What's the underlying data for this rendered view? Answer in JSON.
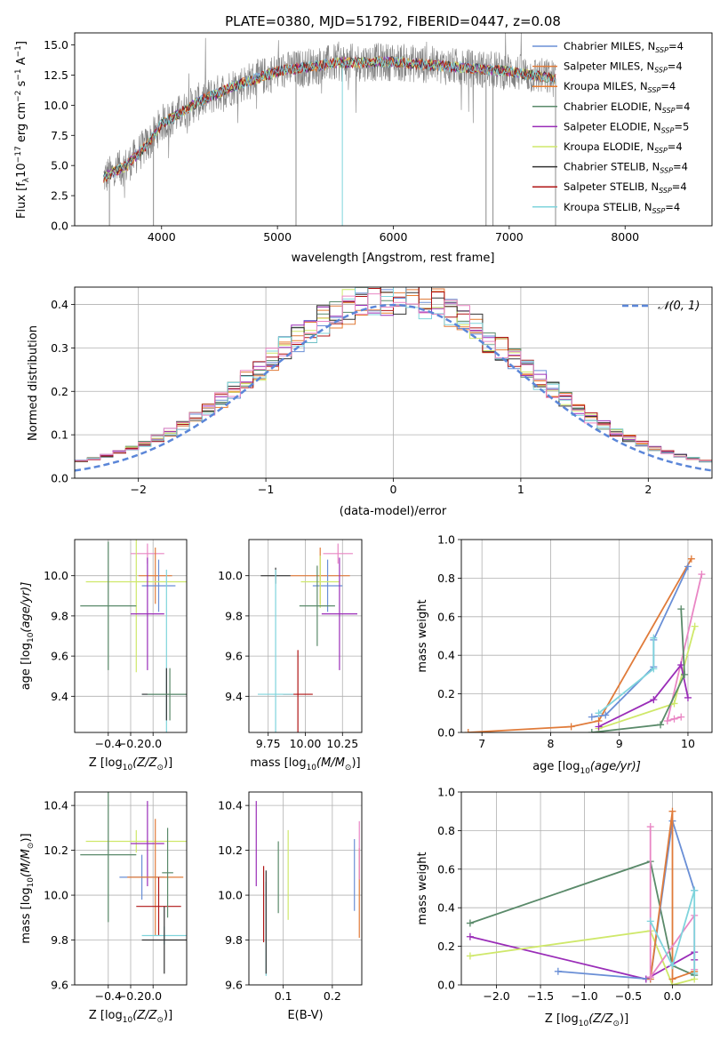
{
  "colors": {
    "chabrier_miles": "#6a8fd6",
    "salpeter_miles": "#e07b3a",
    "kroupa_miles": "#e97b2c",
    "chabrier_elodie": "#5a8a6a",
    "salpeter_elodie": "#9a2db8",
    "kroupa_elodie": "#cfe86a",
    "chabrier_stelib": "#333333",
    "salpeter_stelib": "#b01515",
    "kroupa_stelib": "#7fd4dc",
    "pink": "#e986c4",
    "gauss": "#5b86d8",
    "data_gray": "#808080"
  },
  "chart_data": [
    {
      "id": "spectrum",
      "type": "line",
      "title": "PLATE=0380, MJD=51792, FIBERID=0447, z=0.08",
      "xlabel": "wavelength [Angstrom, rest frame]",
      "ylabel_parts": [
        "Flux [f",
        "λ",
        "10",
        "−17",
        " erg cm",
        "−2",
        " s",
        "−1",
        " A",
        "−1",
        "]"
      ],
      "xlim": [
        3250,
        8750
      ],
      "ylim": [
        0,
        16
      ],
      "xticks": [
        4000,
        5000,
        6000,
        7000,
        8000
      ],
      "yticks": [
        "0.0",
        "2.5",
        "5.0",
        "7.5",
        "10.0",
        "12.5",
        "15.0"
      ],
      "ytick_values": [
        0,
        2.5,
        5,
        7.5,
        10,
        12.5,
        15
      ],
      "continuum": [
        [
          3500,
          4.0
        ],
        [
          3700,
          5.0
        ],
        [
          3900,
          7.0
        ],
        [
          4000,
          8.5
        ],
        [
          4100,
          9.0
        ],
        [
          4300,
          10.2
        ],
        [
          4600,
          11.5
        ],
        [
          5000,
          12.8
        ],
        [
          5500,
          13.5
        ],
        [
          6000,
          13.6
        ],
        [
          6500,
          13.2
        ],
        [
          7000,
          12.8
        ],
        [
          7400,
          12.2
        ]
      ],
      "legend": [
        {
          "label": "Chabrier MILES, N",
          "sub": "SSP",
          "tail": "=4",
          "color": "#6a8fd6"
        },
        {
          "label": "Salpeter MILES, N",
          "sub": "SSP",
          "tail": "=4",
          "color": "#e07b3a"
        },
        {
          "label": "Kroupa MILES, N",
          "sub": "SSP",
          "tail": "=4",
          "color": "#e97b2c"
        },
        {
          "label": "Chabrier ELODIE, N",
          "sub": "SSP",
          "tail": "=4",
          "color": "#5a8a6a"
        },
        {
          "label": "Salpeter ELODIE, N",
          "sub": "SSP",
          "tail": "=5",
          "color": "#9a2db8"
        },
        {
          "label": "Kroupa ELODIE, N",
          "sub": "SSP",
          "tail": "=4",
          "color": "#cfe86a"
        },
        {
          "label": "Chabrier STELIB, N",
          "sub": "SSP",
          "tail": "=4",
          "color": "#333333"
        },
        {
          "label": "Salpeter STELIB, N",
          "sub": "SSP",
          "tail": "=4",
          "color": "#b01515"
        },
        {
          "label": "Kroupa STELIB, N",
          "sub": "SSP",
          "tail": "=4",
          "color": "#7fd4dc"
        }
      ]
    },
    {
      "id": "residuals",
      "type": "area",
      "xlabel": "(data-model)/error",
      "ylabel": "Normed distribution",
      "xlim": [
        -2.5,
        2.5
      ],
      "ylim": [
        0,
        0.44
      ],
      "xticks": [
        "−2",
        "−1",
        "0",
        "1",
        "2"
      ],
      "xtick_values": [
        -2,
        -1,
        0,
        1,
        2
      ],
      "yticks": [
        "0.0",
        "0.1",
        "0.2",
        "0.3",
        "0.4"
      ],
      "ytick_values": [
        0,
        0.1,
        0.2,
        0.3,
        0.4
      ],
      "bin_width": 0.1,
      "legend": {
        "label": "𝒩(0, 1)"
      }
    },
    {
      "id": "age_vs_Z",
      "type": "scatter",
      "xlabel": "Z [log",
      "xlabel_sub": "10",
      "xlabel_tail": "(Z/Z",
      "xlabel_sun": "⊙",
      "xlabel_end": ")]",
      "ylabel": "age  [log",
      "ylabel_sub": "10",
      "ylabel_tail": "(age/yr)]",
      "xlim": [
        -0.7,
        0.3
      ],
      "ylim": [
        9.22,
        10.18
      ],
      "xticks": [
        "−0.4",
        "−0.2",
        "0.0"
      ],
      "xtick_values": [
        -0.4,
        -0.2,
        0.0
      ],
      "yticks": [
        "9.4",
        "9.6",
        "9.8",
        "10.0"
      ],
      "ytick_values": [
        9.4,
        9.6,
        9.8,
        10.0
      ],
      "points": [
        {
          "x": -0.05,
          "y": 10.11,
          "xerr": 0.15,
          "yerr": 0.05,
          "color": "#e986c4"
        },
        {
          "x": 0.02,
          "y": 10.0,
          "xerr": 0.15,
          "yerr": 0.14,
          "color": "#e07b3a"
        },
        {
          "x": 0.05,
          "y": 9.95,
          "xerr": 0.15,
          "yerr": 0.13,
          "color": "#6a8fd6"
        },
        {
          "x": -0.15,
          "y": 9.97,
          "xerr": 0.45,
          "yerr": 0.45,
          "color": "#cfe86a"
        },
        {
          "x": -0.4,
          "y": 9.85,
          "xerr": 0.25,
          "yerr": 0.32,
          "color": "#5a8a6a"
        },
        {
          "x": -0.05,
          "y": 9.81,
          "xerr": 0.15,
          "yerr": 0.28,
          "color": "#9a2db8"
        },
        {
          "x": 0.12,
          "y": 9.41,
          "xerr": 0.22,
          "yerr": 0.62,
          "color": "#7fd4dc"
        },
        {
          "x": 0.12,
          "y": 9.41,
          "xerr": 0.22,
          "yerr": 0.13,
          "color": "#333333"
        },
        {
          "x": 0.15,
          "y": 9.41,
          "xerr": 0.2,
          "yerr": 0.13,
          "color": "#5a8a6a"
        }
      ]
    },
    {
      "id": "age_vs_mass",
      "type": "scatter",
      "xlabel": "mass [log",
      "xlabel_sub": "10",
      "xlabel_tail": "(M/M",
      "xlabel_sun": "⊙",
      "xlabel_end": ")]",
      "xlim": [
        9.62,
        10.38
      ],
      "ylim": [
        9.22,
        10.18
      ],
      "xticks": [
        "9.75",
        "10.00",
        "10.25"
      ],
      "xtick_values": [
        9.75,
        10.0,
        10.25
      ],
      "yticks": [
        "9.4",
        "9.6",
        "9.8",
        "10.0"
      ],
      "ytick_values": [
        9.4,
        9.6,
        9.8,
        10.0
      ],
      "points": [
        {
          "x": 10.22,
          "y": 10.11,
          "xerr": 0.1,
          "yerr": 0.05,
          "color": "#e986c4"
        },
        {
          "x": 10.1,
          "y": 10.0,
          "xerr": 0.2,
          "yerr": 0.14,
          "color": "#e07b3a"
        },
        {
          "x": 10.15,
          "y": 9.95,
          "xerr": 0.1,
          "yerr": 0.13,
          "color": "#6a8fd6"
        },
        {
          "x": 10.1,
          "y": 9.97,
          "xerr": 0.13,
          "yerr": 0.13,
          "color": "#cfe86a"
        },
        {
          "x": 9.8,
          "y": 10.0,
          "xerr": 0.1,
          "yerr": 0.04,
          "color": "#333333"
        },
        {
          "x": 10.23,
          "y": 9.81,
          "xerr": 0.12,
          "yerr": 0.28,
          "color": "#9a2db8"
        },
        {
          "x": 10.08,
          "y": 9.85,
          "xerr": 0.12,
          "yerr": 0.2,
          "color": "#5a8a6a"
        },
        {
          "x": 9.95,
          "y": 9.41,
          "xerr": 0.1,
          "yerr": 0.22,
          "color": "#b01515"
        },
        {
          "x": 9.8,
          "y": 9.41,
          "xerr": 0.12,
          "yerr": 0.62,
          "color": "#7fd4dc"
        }
      ]
    },
    {
      "id": "massweight_vs_age",
      "type": "line",
      "xlabel": "age  [log",
      "xlabel_sub": "10",
      "xlabel_tail": "(age/yr)]",
      "ylabel": "mass weight",
      "xlim": [
        6.7,
        10.35
      ],
      "ylim": [
        0,
        1
      ],
      "xticks": [
        "7",
        "8",
        "9",
        "10"
      ],
      "xtick_values": [
        7,
        8,
        9,
        10
      ],
      "yticks": [
        "0.0",
        "0.2",
        "0.4",
        "0.6",
        "0.8",
        "1.0"
      ],
      "ytick_values": [
        0,
        0.2,
        0.4,
        0.6,
        0.8,
        1.0
      ],
      "series": [
        {
          "color": "#e07b3a",
          "x": [
            6.8,
            8.3,
            8.7,
            10.05
          ],
          "y": [
            0.0,
            0.03,
            0.06,
            0.9
          ]
        },
        {
          "color": "#6a8fd6",
          "x": [
            8.6,
            8.8,
            9.5,
            9.5,
            10.0
          ],
          "y": [
            0.08,
            0.09,
            0.34,
            0.48,
            0.86
          ]
        },
        {
          "color": "#e986c4",
          "x": [
            9.9,
            9.8,
            9.7,
            10.2
          ],
          "y": [
            0.08,
            0.07,
            0.06,
            0.82
          ]
        },
        {
          "color": "#cfe86a",
          "x": [
            8.7,
            9.8,
            10.1
          ],
          "y": [
            0.02,
            0.15,
            0.55
          ]
        },
        {
          "color": "#9a2db8",
          "x": [
            8.7,
            9.5,
            9.9,
            10.0
          ],
          "y": [
            0.03,
            0.17,
            0.35,
            0.18
          ]
        },
        {
          "color": "#5a8a6a",
          "x": [
            8.6,
            9.6,
            9.95,
            9.9
          ],
          "y": [
            0.0,
            0.04,
            0.3,
            0.64
          ]
        },
        {
          "color": "#7fd4dc",
          "x": [
            8.7,
            9.5,
            9.5
          ],
          "y": [
            0.1,
            0.33,
            0.49
          ]
        }
      ]
    },
    {
      "id": "mass_vs_Z",
      "type": "scatter",
      "xlabel": "Z [log",
      "xlabel_sub": "10",
      "xlabel_tail": "(Z/Z",
      "xlabel_sun": "⊙",
      "xlabel_end": ")]",
      "ylabel": "mass [log",
      "ylabel_sub": "10",
      "ylabel_tail": "(M/M",
      "ylabel_sun": "⊙",
      "ylabel_end": ")]",
      "xlim": [
        -0.7,
        0.3
      ],
      "ylim": [
        9.6,
        10.46
      ],
      "xticks": [
        "−0.4",
        "−0.2",
        "0.0"
      ],
      "xtick_values": [
        -0.4,
        -0.2,
        0.0
      ],
      "yticks": [
        "9.6",
        "9.8",
        "10.0",
        "10.2",
        "10.4"
      ],
      "ytick_values": [
        9.6,
        9.8,
        10.0,
        10.2,
        10.4
      ],
      "points": [
        {
          "x": -0.15,
          "y": 10.24,
          "xerr": 0.45,
          "yerr": 0.05,
          "color": "#cfe86a"
        },
        {
          "x": -0.05,
          "y": 10.23,
          "xerr": 0.15,
          "yerr": 0.19,
          "color": "#9a2db8"
        },
        {
          "x": -0.4,
          "y": 10.18,
          "xerr": 0.25,
          "yerr": 0.3,
          "color": "#5a8a6a"
        },
        {
          "x": -0.1,
          "y": 10.08,
          "xerr": 0.2,
          "yerr": 0.1,
          "color": "#6a8fd6"
        },
        {
          "x": 0.02,
          "y": 10.08,
          "xerr": 0.25,
          "yerr": 0.26,
          "color": "#e07b3a"
        },
        {
          "x": 0.05,
          "y": 9.95,
          "xerr": 0.2,
          "yerr": 0.13,
          "color": "#b01515"
        },
        {
          "x": 0.1,
          "y": 9.82,
          "xerr": 0.2,
          "yerr": 0.04,
          "color": "#7fd4dc"
        },
        {
          "x": 0.1,
          "y": 9.8,
          "xerr": 0.2,
          "yerr": 0.15,
          "color": "#333333"
        },
        {
          "x": 0.13,
          "y": 10.1,
          "xerr": 0.05,
          "yerr": 0.2,
          "color": "#5a8a6a"
        }
      ]
    },
    {
      "id": "mass_vs_ebv",
      "type": "scatter",
      "xlabel": "E(B-V)",
      "xlim": [
        0.03,
        0.26
      ],
      "ylim": [
        9.6,
        10.46
      ],
      "xticks": [
        "0.1",
        "0.2"
      ],
      "xtick_values": [
        0.1,
        0.2
      ],
      "yticks": [
        "9.6",
        "9.8",
        "10.0",
        "10.2",
        "10.4"
      ],
      "ytick_values": [
        9.6,
        9.8,
        10.0,
        10.2,
        10.4
      ],
      "points": [
        {
          "x": 0.045,
          "y": 10.23,
          "xerr": 0,
          "yerr": 0.19,
          "color": "#9a2db8"
        },
        {
          "x": 0.06,
          "y": 9.96,
          "xerr": 0,
          "yerr": 0.17,
          "color": "#b01515"
        },
        {
          "x": 0.065,
          "y": 9.85,
          "xerr": 0,
          "yerr": 0.21,
          "color": "#7fd4dc"
        },
        {
          "x": 0.065,
          "y": 9.88,
          "xerr": 0,
          "yerr": 0.23,
          "color": "#333333"
        },
        {
          "x": 0.09,
          "y": 10.08,
          "xerr": 0,
          "yerr": 0.16,
          "color": "#5a8a6a"
        },
        {
          "x": 0.11,
          "y": 10.09,
          "xerr": 0,
          "yerr": 0.2,
          "color": "#cfe86a"
        },
        {
          "x": 0.245,
          "y": 10.09,
          "xerr": 0,
          "yerr": 0.16,
          "color": "#6a8fd6"
        },
        {
          "x": 0.255,
          "y": 10.01,
          "xerr": 0,
          "yerr": 0.2,
          "color": "#e07b3a"
        },
        {
          "x": 0.255,
          "y": 10.2,
          "xerr": 0,
          "yerr": 0.13,
          "color": "#e986c4"
        }
      ]
    },
    {
      "id": "massweight_vs_Z",
      "type": "line",
      "xlabel": "Z [log",
      "xlabel_sub": "10",
      "xlabel_tail": "(Z/Z",
      "xlabel_sun": "⊙",
      "xlabel_end": ")]",
      "ylabel": "mass weight",
      "xlim": [
        -2.4,
        0.45
      ],
      "ylim": [
        0,
        1
      ],
      "xticks": [
        "−2.0",
        "−1.5",
        "−1.0",
        "−0.5",
        "0.0"
      ],
      "xtick_values": [
        -2.0,
        -1.5,
        -1.0,
        -0.5,
        0.0
      ],
      "yticks": [
        "0.0",
        "0.2",
        "0.4",
        "0.6",
        "0.8",
        "1.0"
      ],
      "ytick_values": [
        0,
        0.2,
        0.4,
        0.6,
        0.8,
        1.0
      ],
      "series": [
        {
          "color": "#5a8a6a",
          "x": [
            -2.3,
            -0.25,
            0.0,
            0.25
          ],
          "y": [
            0.32,
            0.64,
            0.1,
            0.05
          ]
        },
        {
          "color": "#9a2db8",
          "x": [
            -2.3,
            -0.3,
            0.25,
            0.25
          ],
          "y": [
            0.25,
            0.03,
            0.17,
            0.13
          ]
        },
        {
          "color": "#cfe86a",
          "x": [
            -2.3,
            -0.25,
            0.0,
            0.25
          ],
          "y": [
            0.15,
            0.28,
            0.0,
            0.03
          ]
        },
        {
          "color": "#6a8fd6",
          "x": [
            -1.3,
            -0.25,
            0.0,
            0.25
          ],
          "y": [
            0.07,
            0.03,
            0.85,
            0.49
          ]
        },
        {
          "color": "#e07b3a",
          "x": [
            -0.25,
            0.0,
            0.0,
            0.25
          ],
          "y": [
            0.03,
            0.9,
            0.03,
            0.07
          ]
        },
        {
          "color": "#e986c4",
          "x": [
            -0.25,
            -0.25,
            0.25,
            0.25
          ],
          "y": [
            0.82,
            0.04,
            0.36,
            0.08
          ]
        },
        {
          "color": "#7fd4dc",
          "x": [
            -0.25,
            0.0,
            0.25,
            0.25
          ],
          "y": [
            0.33,
            0.1,
            0.49,
            0.06
          ]
        }
      ]
    }
  ]
}
